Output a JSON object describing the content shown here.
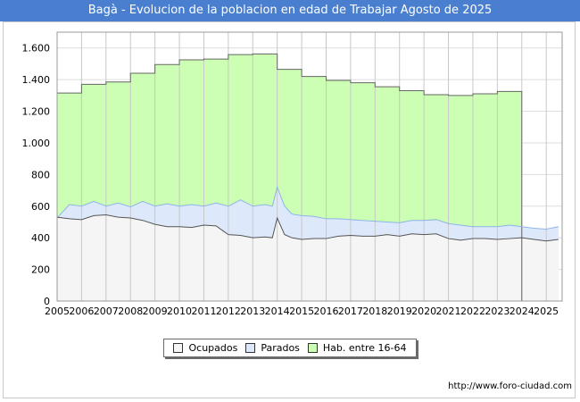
{
  "chart_data": {
    "type": "area",
    "title": "Bagà - Evolucion de la poblacion en edad de Trabajar Agosto de 2025",
    "xlabel": "",
    "ylabel": "",
    "ylim": [
      0,
      1700
    ],
    "yticks": [
      0,
      200,
      400,
      600,
      800,
      1000,
      1200,
      1400,
      1600
    ],
    "ytick_labels": [
      "0",
      "200",
      "400",
      "600",
      "800",
      "1.000",
      "1.200",
      "1.400",
      "1.600"
    ],
    "xlim": [
      2005,
      2025.65
    ],
    "xticks": [
      2005,
      2006,
      2007,
      2008,
      2009,
      2010,
      2011,
      2012,
      2013,
      2014,
      2015,
      2016,
      2017,
      2018,
      2019,
      2020,
      2021,
      2022,
      2023,
      2024,
      2025
    ],
    "grid": true,
    "legend_position": "bottom-center",
    "series": [
      {
        "name": "Hab. entre 16-64",
        "color": "#ccffb3",
        "line_color": "#666666",
        "step": true,
        "x": [
          2005,
          2006,
          2007,
          2008,
          2009,
          2010,
          2011,
          2012,
          2013,
          2014,
          2015,
          2016,
          2017,
          2018,
          2019,
          2020,
          2021,
          2022,
          2023,
          2024
        ],
        "values": [
          1315,
          1370,
          1385,
          1440,
          1495,
          1525,
          1530,
          1558,
          1562,
          1465,
          1420,
          1395,
          1380,
          1355,
          1330,
          1305,
          1300,
          1310,
          1325,
          0
        ]
      },
      {
        "name": "Parados",
        "color": "#dde9fb",
        "line_color": "#8db4e8",
        "x": [
          2005,
          2005.5,
          2006,
          2006.5,
          2007,
          2007.5,
          2008,
          2008.5,
          2009,
          2009.5,
          2010,
          2010.5,
          2011,
          2011.5,
          2012,
          2012.5,
          2013,
          2013.5,
          2013.8,
          2014,
          2014.3,
          2014.6,
          2015,
          2015.5,
          2016,
          2016.5,
          2017,
          2017.5,
          2018,
          2018.5,
          2019,
          2019.5,
          2020,
          2020.5,
          2021,
          2021.5,
          2022,
          2022.5,
          2023,
          2023.5,
          2024,
          2024.5,
          2025,
          2025.5
        ],
        "values": [
          525,
          610,
          600,
          630,
          600,
          620,
          595,
          630,
          600,
          615,
          600,
          610,
          600,
          620,
          600,
          640,
          600,
          610,
          600,
          720,
          600,
          550,
          540,
          535,
          520,
          520,
          515,
          510,
          505,
          500,
          495,
          510,
          510,
          515,
          490,
          480,
          470,
          470,
          470,
          480,
          470,
          460,
          455,
          470
        ]
      },
      {
        "name": "Ocupados",
        "color": "#f5f5f5",
        "line_color": "#555555",
        "x": [
          2005,
          2005.5,
          2006,
          2006.5,
          2007,
          2007.5,
          2008,
          2008.5,
          2009,
          2009.5,
          2010,
          2010.5,
          2011,
          2011.5,
          2012,
          2012.5,
          2013,
          2013.5,
          2013.8,
          2014,
          2014.3,
          2014.6,
          2015,
          2015.5,
          2016,
          2016.5,
          2017,
          2017.5,
          2018,
          2018.5,
          2019,
          2019.5,
          2020,
          2020.5,
          2021,
          2021.5,
          2022,
          2022.5,
          2023,
          2023.5,
          2024,
          2024.5,
          2025,
          2025.5
        ],
        "values": [
          530,
          520,
          515,
          540,
          545,
          530,
          525,
          510,
          485,
          470,
          470,
          465,
          480,
          475,
          420,
          415,
          400,
          405,
          400,
          525,
          420,
          400,
          390,
          395,
          395,
          410,
          415,
          410,
          410,
          420,
          410,
          425,
          420,
          425,
          395,
          385,
          395,
          395,
          390,
          395,
          400,
          390,
          380,
          390
        ]
      }
    ]
  },
  "legend": {
    "items": [
      {
        "label": "Ocupados",
        "color": "#f5f5f5"
      },
      {
        "label": "Parados",
        "color": "#dde9fb"
      },
      {
        "label": "Hab. entre 16-64",
        "color": "#ccffb3"
      }
    ]
  },
  "source": "http://www.foro-ciudad.com"
}
